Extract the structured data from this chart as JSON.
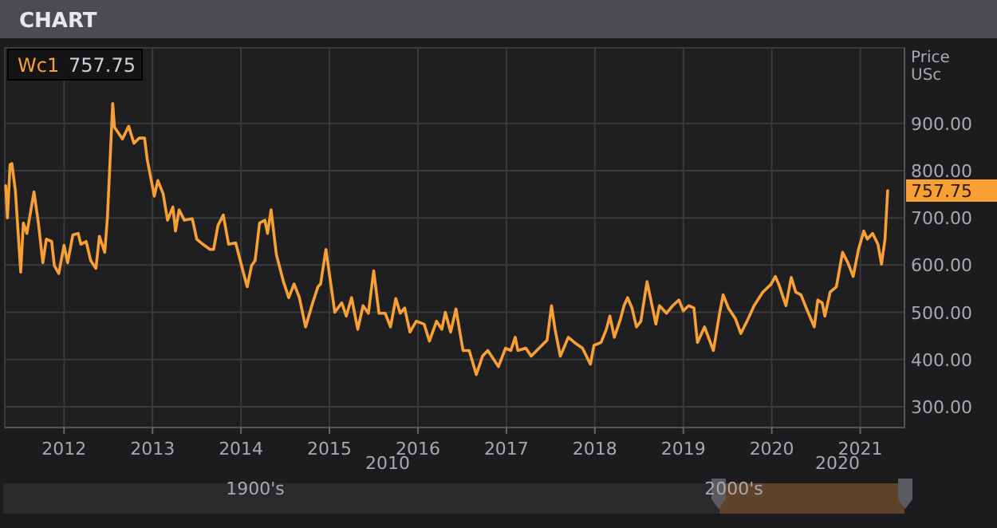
{
  "chart_data": {
    "type": "line",
    "title": "CHART",
    "ylabel": "Price USc",
    "xlim": [
      2011.33,
      2021.5
    ],
    "xticks": [
      2012,
      2013,
      2014,
      2015,
      2016,
      2017,
      2018,
      2019,
      2020,
      2021
    ],
    "ylim": [
      256,
      1060
    ],
    "yticks": [
      {
        "value": 300,
        "label": "300.00"
      },
      {
        "value": 400,
        "label": "400.00"
      },
      {
        "value": 500,
        "label": "500.00"
      },
      {
        "value": 600,
        "label": "600.00"
      },
      {
        "value": 700,
        "label": "700.00"
      },
      {
        "value": 800,
        "label": "800.00"
      },
      {
        "value": 900,
        "label": "900.00"
      }
    ],
    "grid": true,
    "legend": "top left",
    "line_style": "solid",
    "annotations": [
      "757.75",
      "2010",
      "2020",
      "1900's",
      "2000's"
    ],
    "series": [
      {
        "name": "Wc1",
        "color": "#f7a035",
        "x": [
          2011.34,
          2011.36,
          2011.39,
          2011.41,
          2011.45,
          2011.51,
          2011.54,
          2011.58,
          2011.6,
          2011.66,
          2011.71,
          2011.76,
          2011.8,
          2011.86,
          2011.89,
          2011.94,
          2012.0,
          2012.04,
          2012.1,
          2012.16,
          2012.19,
          2012.25,
          2012.3,
          2012.36,
          2012.4,
          2012.46,
          2012.49,
          2012.55,
          2012.57,
          2012.66,
          2012.73,
          2012.79,
          2012.85,
          2012.91,
          2012.94,
          2013.02,
          2013.06,
          2013.12,
          2013.17,
          2013.23,
          2013.26,
          2013.3,
          2013.36,
          2013.45,
          2013.5,
          2013.57,
          2013.65,
          2013.69,
          2013.74,
          2013.8,
          2013.86,
          2013.94,
          2014.03,
          2014.07,
          2014.12,
          2014.16,
          2014.21,
          2014.27,
          2014.3,
          2014.34,
          2014.4,
          2014.48,
          2014.54,
          2014.6,
          2014.66,
          2014.73,
          2014.81,
          2014.87,
          2014.9,
          2014.96,
          2015.02,
          2015.06,
          2015.14,
          2015.19,
          2015.25,
          2015.32,
          2015.38,
          2015.44,
          2015.5,
          2015.56,
          2015.63,
          2015.69,
          2015.75,
          2015.8,
          2015.85,
          2015.91,
          2015.98,
          2016.07,
          2016.13,
          2016.21,
          2016.27,
          2016.31,
          2016.37,
          2016.43,
          2016.51,
          2016.58,
          2016.66,
          2016.73,
          2016.79,
          2016.85,
          2016.91,
          2016.99,
          2017.05,
          2017.1,
          2017.13,
          2017.22,
          2017.28,
          2017.37,
          2017.46,
          2017.51,
          2017.55,
          2017.61,
          2017.7,
          2017.77,
          2017.86,
          2017.95,
          2017.99,
          2018.07,
          2018.13,
          2018.17,
          2018.22,
          2018.29,
          2018.33,
          2018.37,
          2018.42,
          2018.47,
          2018.52,
          2018.59,
          2018.64,
          2018.69,
          2018.73,
          2018.81,
          2018.88,
          2018.95,
          2019.0,
          2019.06,
          2019.12,
          2019.16,
          2019.24,
          2019.34,
          2019.41,
          2019.45,
          2019.51,
          2019.59,
          2019.65,
          2019.72,
          2019.8,
          2019.9,
          2019.99,
          2020.04,
          2020.08,
          2020.16,
          2020.22,
          2020.27,
          2020.33,
          2020.39,
          2020.48,
          2020.52,
          2020.57,
          2020.6,
          2020.66,
          2020.73,
          2020.8,
          2020.86,
          2020.92,
          2020.98,
          2021.04,
          2021.08,
          2021.14,
          2021.2,
          2021.24,
          2021.28,
          2021.31
        ],
        "values": [
          768,
          700,
          813,
          815,
          757,
          585,
          689,
          667,
          689,
          755,
          689,
          605,
          655,
          650,
          599,
          582,
          642,
          605,
          664,
          667,
          644,
          650,
          610,
          593,
          661,
          627,
          700,
          942,
          892,
          867,
          894,
          858,
          869,
          869,
          824,
          746,
          779,
          751,
          695,
          723,
          672,
          717,
          695,
          698,
          655,
          644,
          633,
          633,
          684,
          706,
          644,
          647,
          582,
          554,
          599,
          610,
          689,
          695,
          667,
          717,
          622,
          565,
          531,
          560,
          531,
          469,
          520,
          554,
          560,
          633,
          554,
          500,
          520,
          492,
          531,
          464,
          514,
          498,
          588,
          498,
          498,
          469,
          529,
          498,
          509,
          458,
          481,
          475,
          439,
          481,
          464,
          500,
          458,
          507,
          419,
          419,
          368,
          407,
          419,
          402,
          385,
          424,
          419,
          447,
          419,
          424,
          407,
          424,
          441,
          514,
          464,
          407,
          447,
          436,
          424,
          390,
          430,
          436,
          464,
          492,
          447,
          486,
          514,
          531,
          509,
          469,
          481,
          565,
          520,
          475,
          514,
          498,
          514,
          526,
          503,
          514,
          509,
          436,
          469,
          419,
          498,
          537,
          509,
          486,
          455,
          481,
          514,
          543,
          559,
          576,
          559,
          514,
          574,
          543,
          537,
          509,
          469,
          526,
          520,
          492,
          543,
          554,
          627,
          605,
          576,
          633,
          672,
          655,
          667,
          644,
          602,
          655,
          757.75
        ]
      }
    ]
  }
}
